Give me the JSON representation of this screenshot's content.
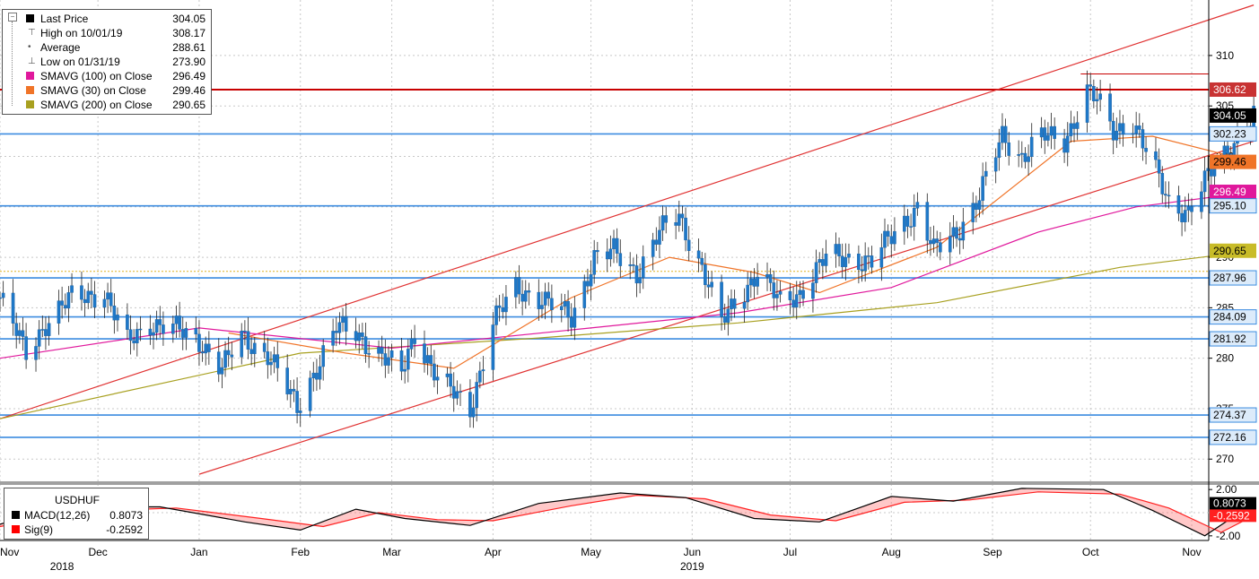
{
  "main_legend": {
    "rows": [
      {
        "label": "Last Price",
        "value": "304.05",
        "marker": "square",
        "color": "#000000"
      },
      {
        "label": "High on 10/01/19",
        "value": "308.17",
        "marker": "high"
      },
      {
        "label": "Average",
        "value": "288.61",
        "marker": "avg"
      },
      {
        "label": "Low on 01/31/19",
        "value": "273.90",
        "marker": "low"
      },
      {
        "label": "SMAVG (100)  on Close",
        "value": "296.49",
        "marker": "square",
        "color": "#e0189c"
      },
      {
        "label": "SMAVG (30)  on Close",
        "value": "299.46",
        "marker": "square",
        "color": "#f07428"
      },
      {
        "label": "SMAVG (200)  on Close",
        "value": "290.65",
        "marker": "square",
        "color": "#a8a020"
      }
    ]
  },
  "macd_legend": {
    "title": "USDHUF",
    "rows": [
      {
        "label": "MACD(12,26)",
        "value": "0.8073",
        "color": "#000000"
      },
      {
        "label": "Sig(9)",
        "value": "-0.2592",
        "color": "#ff0000"
      }
    ]
  },
  "colors": {
    "candle_up": "#1e78c8",
    "candle_down": "#1e78c8",
    "hline": "#3c8ce0",
    "resistance": "#c80000",
    "channel": "#e03232",
    "sma100": "#e0189c",
    "sma30": "#f07428",
    "sma200": "#a8a020",
    "macd_fill": "#ff6060"
  },
  "chart_data": [
    {
      "type": "candlestick",
      "title": "",
      "y_ticks": [
        270,
        275,
        280,
        285,
        290,
        295,
        300,
        305,
        310
      ],
      "ylim": [
        267.8,
        315.5
      ],
      "x_months": [
        {
          "label": "Nov",
          "date": "2018-11-01"
        },
        {
          "label": "Dec",
          "date": "2018-12-01"
        },
        {
          "label": "Jan",
          "date": "2019-01-01"
        },
        {
          "label": "Feb",
          "date": "2019-02-01"
        },
        {
          "label": "Mar",
          "date": "2019-03-01"
        },
        {
          "label": "Apr",
          "date": "2019-04-01"
        },
        {
          "label": "May",
          "date": "2019-05-01"
        },
        {
          "label": "Jun",
          "date": "2019-06-01"
        },
        {
          "label": "Jul",
          "date": "2019-07-01"
        },
        {
          "label": "Aug",
          "date": "2019-08-01"
        },
        {
          "label": "Sep",
          "date": "2019-09-01"
        },
        {
          "label": "Oct",
          "date": "2019-10-01"
        },
        {
          "label": "Nov",
          "date": "2019-11-01"
        }
      ],
      "x_years": [
        {
          "label": "2018",
          "date": "2018-11-20"
        },
        {
          "label": "2019",
          "date": "2019-06-01"
        }
      ],
      "xlim": [
        "2018-11-01",
        "2019-11-01"
      ],
      "close_path": [
        [
          "2018-11-01",
          286.0
        ],
        [
          "2018-11-09",
          280.5
        ],
        [
          "2018-11-15",
          283.5
        ],
        [
          "2018-11-23",
          286.0
        ],
        [
          "2018-12-03",
          286.5
        ],
        [
          "2018-12-10",
          281.5
        ],
        [
          "2018-12-17",
          283.5
        ],
        [
          "2018-12-24",
          283.0
        ],
        [
          "2019-01-02",
          281.5
        ],
        [
          "2019-01-08",
          279.0
        ],
        [
          "2019-01-14",
          282.0
        ],
        [
          "2019-01-22",
          280.5
        ],
        [
          "2019-01-31",
          275.0
        ],
        [
          "2019-02-05",
          278.5
        ],
        [
          "2019-02-12",
          283.0
        ],
        [
          "2019-02-18",
          282.5
        ],
        [
          "2019-02-25",
          280.5
        ],
        [
          "2019-03-04",
          278.5
        ],
        [
          "2019-03-08",
          282.5
        ],
        [
          "2019-03-15",
          278.0
        ],
        [
          "2019-03-25",
          275.0
        ],
        [
          "2019-04-01",
          283.5
        ],
        [
          "2019-04-08",
          287.0
        ],
        [
          "2019-04-15",
          286.0
        ],
        [
          "2019-04-25",
          284.0
        ],
        [
          "2019-05-02",
          290.0
        ],
        [
          "2019-05-08",
          290.5
        ],
        [
          "2019-05-15",
          288.5
        ],
        [
          "2019-05-22",
          292.5
        ],
        [
          "2019-05-28",
          294.0
        ],
        [
          "2019-06-04",
          289.0
        ],
        [
          "2019-06-10",
          283.5
        ],
        [
          "2019-06-14",
          285.5
        ],
        [
          "2019-06-21",
          288.5
        ],
        [
          "2019-06-28",
          285.5
        ],
        [
          "2019-07-04",
          286.5
        ],
        [
          "2019-07-12",
          290.0
        ],
        [
          "2019-07-19",
          290.0
        ],
        [
          "2019-07-26",
          289.5
        ],
        [
          "2019-08-02",
          292.5
        ],
        [
          "2019-08-09",
          295.0
        ],
        [
          "2019-08-14",
          290.5
        ],
        [
          "2019-08-21",
          292.5
        ],
        [
          "2019-08-28",
          296.0
        ],
        [
          "2019-09-04",
          302.0
        ],
        [
          "2019-09-10",
          300.0
        ],
        [
          "2019-09-16",
          302.0
        ],
        [
          "2019-09-23",
          301.5
        ],
        [
          "2019-09-30",
          306.5
        ],
        [
          "2019-10-03",
          305.5
        ],
        [
          "2019-10-08",
          302.5
        ],
        [
          "2019-10-14",
          303.5
        ],
        [
          "2019-10-18",
          300.5
        ],
        [
          "2019-10-25",
          295.5
        ],
        [
          "2019-10-31",
          294.5
        ],
        [
          "2019-11-07",
          298.5
        ],
        [
          "2019-11-14",
          301.5
        ],
        [
          "2019-11-20",
          304.0
        ]
      ],
      "horizontal_lines": [
        {
          "value": 306.62,
          "label": "306.62",
          "kind": "resistance"
        },
        {
          "value": 304.05,
          "label": "304.05",
          "kind": "last"
        },
        {
          "value": 302.23,
          "label": "302.23",
          "kind": "level"
        },
        {
          "value": 299.46,
          "label": "299.46",
          "kind": "sma30"
        },
        {
          "value": 296.49,
          "label": "296.49",
          "kind": "sma100"
        },
        {
          "value": 295.1,
          "label": "295.10",
          "kind": "level"
        },
        {
          "value": 290.65,
          "label": "290.65",
          "kind": "sma200"
        },
        {
          "value": 287.96,
          "label": "287.96",
          "kind": "level"
        },
        {
          "value": 284.09,
          "label": "284.09",
          "kind": "level"
        },
        {
          "value": 281.92,
          "label": "281.92",
          "kind": "level"
        },
        {
          "value": 274.37,
          "label": "274.37",
          "kind": "level"
        },
        {
          "value": 272.16,
          "label": "272.16",
          "kind": "level"
        }
      ],
      "channel_lines": [
        {
          "from": [
            "2018-11-01",
            274.0
          ],
          "to": [
            "2019-11-20",
            315.0
          ]
        },
        {
          "from": [
            "2019-01-01",
            268.5
          ],
          "to": [
            "2019-11-20",
            301.5
          ]
        }
      ],
      "sma100": [
        [
          "2018-11-01",
          280.0
        ],
        [
          "2019-01-01",
          283.0
        ],
        [
          "2019-03-01",
          281.0
        ],
        [
          "2019-05-01",
          283.0
        ],
        [
          "2019-06-15",
          284.5
        ],
        [
          "2019-08-01",
          287.0
        ],
        [
          "2019-09-15",
          292.5
        ],
        [
          "2019-10-15",
          295.0
        ],
        [
          "2019-11-20",
          296.49
        ]
      ],
      "sma30": [
        [
          "2019-01-10",
          282.5
        ],
        [
          "2019-02-15",
          280.5
        ],
        [
          "2019-03-20",
          279.0
        ],
        [
          "2019-04-25",
          286.0
        ],
        [
          "2019-05-25",
          290.0
        ],
        [
          "2019-06-20",
          288.5
        ],
        [
          "2019-07-10",
          286.5
        ],
        [
          "2019-08-15",
          291.0
        ],
        [
          "2019-09-25",
          301.5
        ],
        [
          "2019-10-20",
          302.0
        ],
        [
          "2019-11-20",
          299.46
        ]
      ],
      "sma200": [
        [
          "2018-11-01",
          274.0
        ],
        [
          "2019-02-01",
          280.5
        ],
        [
          "2019-04-15",
          282.0
        ],
        [
          "2019-06-15",
          283.5
        ],
        [
          "2019-08-15",
          285.5
        ],
        [
          "2019-10-10",
          289.0
        ],
        [
          "2019-11-20",
          290.65
        ]
      ]
    },
    {
      "type": "line",
      "title": "",
      "y_ticks": [
        2.0,
        -2.0
      ],
      "y_tick_labels": [
        "2.00",
        "-2.00"
      ],
      "ylim": [
        -2.4,
        2.4
      ],
      "series": [
        {
          "name": "MACD(12,26)",
          "value_label": "0.8073",
          "values": [
            [
              "2018-11-01",
              -1.0
            ],
            [
              "2018-11-20",
              0.5
            ],
            [
              "2018-12-20",
              0.5
            ],
            [
              "2019-01-15",
              -0.8
            ],
            [
              "2019-02-01",
              -1.5
            ],
            [
              "2019-02-18",
              0.3
            ],
            [
              "2019-03-05",
              -0.5
            ],
            [
              "2019-03-25",
              -1.1
            ],
            [
              "2019-04-15",
              0.8
            ],
            [
              "2019-05-10",
              1.7
            ],
            [
              "2019-05-30",
              1.3
            ],
            [
              "2019-06-20",
              -0.5
            ],
            [
              "2019-07-10",
              -0.8
            ],
            [
              "2019-08-01",
              1.4
            ],
            [
              "2019-08-20",
              1.0
            ],
            [
              "2019-09-10",
              2.1
            ],
            [
              "2019-10-05",
              2.0
            ],
            [
              "2019-10-20",
              0.2
            ],
            [
              "2019-11-05",
              -2.0
            ],
            [
              "2019-11-20",
              0.8073
            ]
          ]
        },
        {
          "name": "Sig(9)",
          "value_label": "-0.2592",
          "values": [
            [
              "2018-11-01",
              -1.2
            ],
            [
              "2018-11-25",
              0.1
            ],
            [
              "2018-12-25",
              0.4
            ],
            [
              "2019-01-20",
              -0.5
            ],
            [
              "2019-02-08",
              -1.2
            ],
            [
              "2019-02-25",
              0.0
            ],
            [
              "2019-03-15",
              -0.6
            ],
            [
              "2019-04-01",
              -0.7
            ],
            [
              "2019-04-25",
              0.6
            ],
            [
              "2019-05-15",
              1.5
            ],
            [
              "2019-06-05",
              1.2
            ],
            [
              "2019-06-25",
              -0.2
            ],
            [
              "2019-07-15",
              -0.7
            ],
            [
              "2019-08-05",
              0.9
            ],
            [
              "2019-08-25",
              1.1
            ],
            [
              "2019-09-15",
              1.8
            ],
            [
              "2019-10-10",
              1.6
            ],
            [
              "2019-10-25",
              0.4
            ],
            [
              "2019-11-10",
              -1.7
            ],
            [
              "2019-11-20",
              -0.2592
            ]
          ]
        }
      ],
      "value_labels": [
        {
          "label": "0.8073",
          "value": 0.8073,
          "series": "MACD(12,26)"
        },
        {
          "label": "-0.2592",
          "value": -0.2592,
          "series": "Sig(9)"
        }
      ]
    }
  ]
}
